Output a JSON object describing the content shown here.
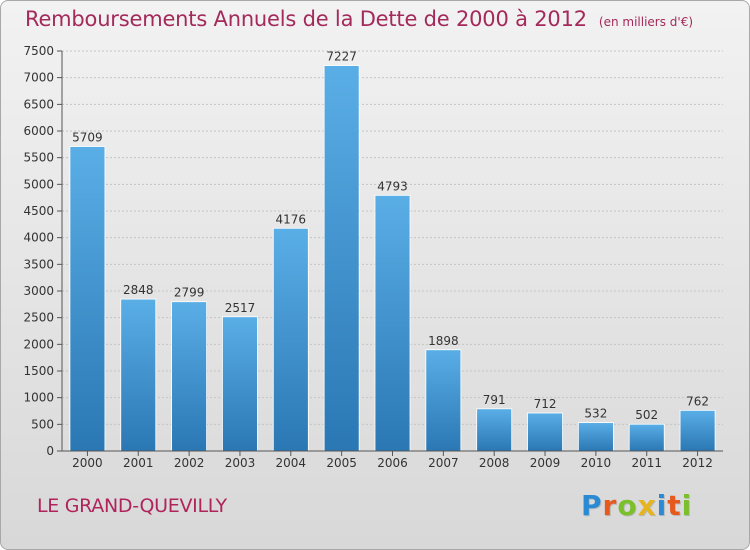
{
  "chart_data": {
    "type": "bar",
    "title": "Remboursements Annuels de la Dette de 2000 à 2012",
    "subtitle": "(en milliers d'€)",
    "categories": [
      "2000",
      "2001",
      "2002",
      "2003",
      "2004",
      "2005",
      "2006",
      "2007",
      "2008",
      "2009",
      "2010",
      "2011",
      "2012"
    ],
    "values": [
      5709,
      2848,
      2799,
      2517,
      4176,
      7227,
      4793,
      1898,
      791,
      712,
      532,
      502,
      762
    ],
    "ylim": [
      0,
      7500
    ],
    "yticks": [
      0,
      500,
      1000,
      1500,
      2000,
      2500,
      3000,
      3500,
      4000,
      4500,
      5000,
      5500,
      6000,
      6500,
      7000,
      7500
    ],
    "grid": true,
    "bar_color_top": "#5aaee6",
    "bar_color_bottom": "#2a77b4"
  },
  "footer": {
    "city": "LE GRAND-QUEVILLY",
    "brand": [
      "P",
      "r",
      "o",
      "x",
      "i",
      "t",
      "i"
    ],
    "brand_colors": [
      "#2a8ad4",
      "#e65a1e",
      "#7bbf2a",
      "#e6b41e",
      "#2a8ad4",
      "#e65a1e",
      "#7bbf2a"
    ]
  }
}
